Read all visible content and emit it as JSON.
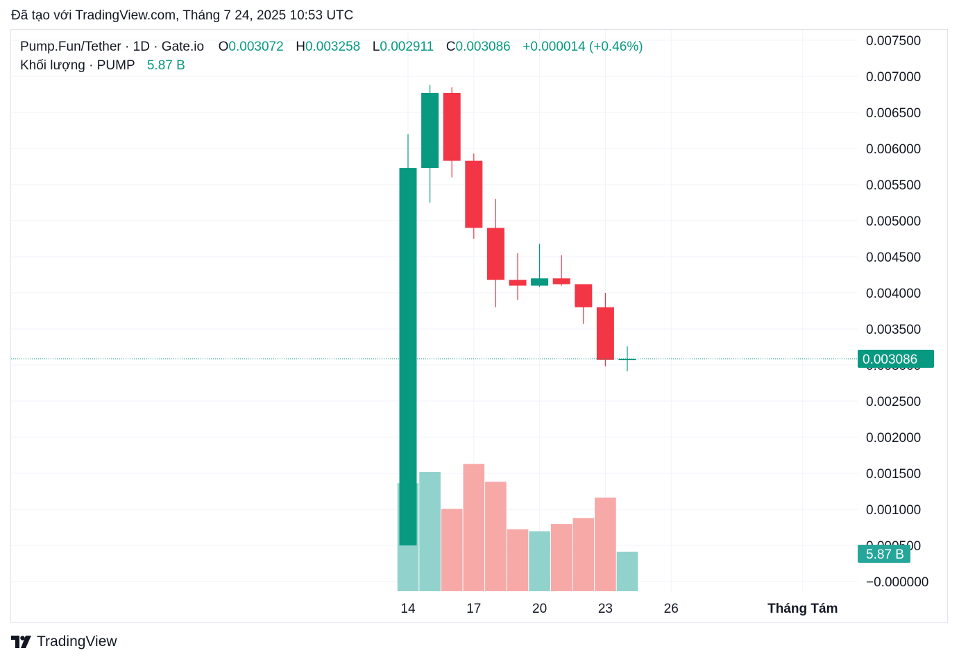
{
  "snapshot_text": "Đã tạo với TradingView.com, Tháng 7 24, 2025 10:53 UTC",
  "legend": {
    "symbol": "Pump.Fun/Tether · 1D · Gate.io",
    "o_label": "O",
    "o_value": "0.003072",
    "h_label": "H",
    "h_value": "0.003258",
    "l_label": "L",
    "l_value": "0.002911",
    "c_label": "C",
    "c_value": "0.003086",
    "change": "+0.000014 (+0.46%)",
    "volume_label": "Khối lượng · PUMP",
    "volume_value": "5.87 B"
  },
  "brand": {
    "name": "TradingView"
  },
  "colors": {
    "up": "#089981",
    "down": "#f23645",
    "up_volume": "#92d2cc",
    "down_volume": "#f7a9a7",
    "grid": "#f0f3fa",
    "last_price_line": "#089981"
  },
  "chart_data": {
    "type": "candlestick",
    "price_axis": {
      "ticks": [
        "0.007500",
        "0.007000",
        "0.006500",
        "0.006000",
        "0.005500",
        "0.005000",
        "0.004500",
        "0.004000",
        "0.003500",
        "0.003000",
        "0.002500",
        "0.002000",
        "0.001500",
        "0.001000",
        "0.000500",
        "−0.000000"
      ],
      "range": [
        0,
        0.0075
      ]
    },
    "time_axis": {
      "ticks": [
        {
          "label": "14",
          "day": 14
        },
        {
          "label": "17",
          "day": 17
        },
        {
          "label": "20",
          "day": 20
        },
        {
          "label": "23",
          "day": 23
        },
        {
          "label": "26",
          "day": 26
        },
        {
          "label": "Tháng Tám",
          "day": 32
        }
      ]
    },
    "last_price": "0.003086",
    "last_volume": "5.87 B",
    "candles": [
      {
        "day": 14,
        "open": 0.0005,
        "high": 0.0062,
        "low": 0.0005,
        "close": 0.00573,
        "volume": 1.64
      },
      {
        "day": 15,
        "open": 0.00573,
        "high": 0.00688,
        "low": 0.00525,
        "close": 0.00677,
        "volume": 1.81
      },
      {
        "day": 16,
        "open": 0.00677,
        "high": 0.00685,
        "low": 0.0056,
        "close": 0.00583,
        "volume": 1.25
      },
      {
        "day": 17,
        "open": 0.00583,
        "high": 0.00593,
        "low": 0.00475,
        "close": 0.0049,
        "volume": 1.93
      },
      {
        "day": 18,
        "open": 0.0049,
        "high": 0.0053,
        "low": 0.0038,
        "close": 0.00418,
        "volume": 1.66
      },
      {
        "day": 19,
        "open": 0.00418,
        "high": 0.00455,
        "low": 0.0039,
        "close": 0.0041,
        "volume": 0.94
      },
      {
        "day": 20,
        "open": 0.0041,
        "high": 0.00468,
        "low": 0.00408,
        "close": 0.0042,
        "volume": 0.91
      },
      {
        "day": 21,
        "open": 0.0042,
        "high": 0.00452,
        "low": 0.0041,
        "close": 0.00412,
        "volume": 1.02
      },
      {
        "day": 22,
        "open": 0.00412,
        "high": 0.00412,
        "low": 0.00357,
        "close": 0.0038,
        "volume": 1.11
      },
      {
        "day": 23,
        "open": 0.0038,
        "high": 0.004,
        "low": 0.00298,
        "close": 0.00307,
        "volume": 1.42
      },
      {
        "day": 24,
        "open": 0.003072,
        "high": 0.003258,
        "low": 0.002911,
        "close": 0.003086,
        "volume": 0.6
      }
    ]
  }
}
